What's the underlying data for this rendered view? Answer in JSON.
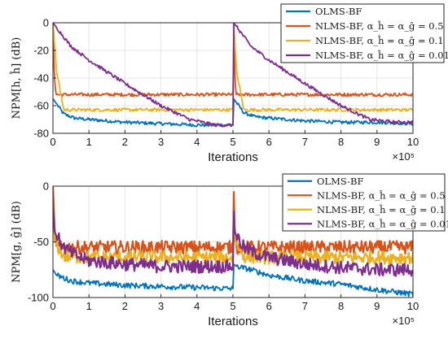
{
  "chart_data": [
    {
      "type": "line",
      "xlabel": "Iterations",
      "ylabel": "NPM[h, ĥ] (dB)",
      "xlim": [
        0,
        10
      ],
      "ylim": [
        -80,
        0
      ],
      "x_ticks": [
        "0",
        "1",
        "2",
        "3",
        "4",
        "5",
        "6",
        "7",
        "8",
        "9",
        "10"
      ],
      "y_ticks": [
        "0",
        "-20",
        "-40",
        "-60",
        "-80"
      ],
      "x_exponent": "×10⁵",
      "grid": true,
      "legend_position": "top-right",
      "series": [
        {
          "name": "OLMS-BF",
          "color": "#0072BD",
          "x": [
            0,
            0.3,
            0.6,
            1,
            2,
            3,
            4,
            5,
            5.02,
            5.3,
            5.6,
            6,
            7,
            8,
            9,
            10
          ],
          "y": [
            -55,
            -66,
            -69,
            -70,
            -72,
            -73,
            -74,
            -74,
            -55,
            -65,
            -68,
            -69,
            -71,
            -72,
            -72,
            -73
          ]
        },
        {
          "name": "NLMS-BF, α_ĥ = α_ĝ = 0.5",
          "color": "#D95319",
          "x": [
            0,
            0.03,
            0.08,
            1,
            5,
            5.02,
            5.05,
            5.08,
            6,
            10
          ],
          "y": [
            0,
            -35,
            -52,
            -52,
            -52,
            0,
            -35,
            -52,
            -52,
            -52
          ]
        },
        {
          "name": "NLMS-BF, α_ĥ = α_ĝ = 0.1",
          "color": "#EDB120",
          "x": [
            0,
            0.1,
            0.3,
            1,
            5,
            5.02,
            5.1,
            5.3,
            6,
            10
          ],
          "y": [
            0,
            -35,
            -63,
            -63,
            -63,
            0,
            -35,
            -63,
            -63,
            -63
          ]
        },
        {
          "name": "NLMS-BF, α_ĥ = α_ĝ = 0.01",
          "color": "#7E2F8E",
          "x": [
            0,
            0.5,
            1,
            2,
            3,
            3.8,
            4.5,
            5,
            5.02,
            5.5,
            6,
            7,
            8,
            8.8,
            9.5,
            10
          ],
          "y": [
            0,
            -17,
            -27,
            -44,
            -60,
            -70,
            -74,
            -74,
            0,
            -17,
            -27,
            -44,
            -60,
            -70,
            -72,
            -72
          ]
        }
      ]
    },
    {
      "type": "line",
      "xlabel": "Iterations",
      "ylabel": "NPM[g, ĝ] (dB)",
      "xlim": [
        0,
        10
      ],
      "ylim": [
        -100,
        0
      ],
      "x_ticks": [
        "0",
        "1",
        "2",
        "3",
        "4",
        "5",
        "6",
        "7",
        "8",
        "9",
        "10"
      ],
      "y_ticks": [
        "0",
        "-50",
        "-100"
      ],
      "x_exponent": "×10⁵",
      "grid": true,
      "legend_position": "top-right",
      "series": [
        {
          "name": "OLMS-BF",
          "color": "#0072BD",
          "x": [
            0,
            0.1,
            0.5,
            1,
            2,
            3,
            4,
            5,
            5.02,
            5.1,
            5.5,
            6,
            7,
            8,
            9,
            10
          ],
          "y": [
            -75,
            -80,
            -85,
            -87,
            -89,
            -90,
            -91,
            -92,
            -70,
            -72,
            -75,
            -80,
            -85,
            -88,
            -93,
            -97
          ]
        },
        {
          "name": "NLMS-BF, α_ĥ = α_ĝ = 0.5",
          "color": "#D95319",
          "x": [
            0,
            0.05,
            0.1,
            1,
            5,
            5.02,
            5.05,
            5.1,
            6,
            10
          ],
          "y": [
            0,
            -40,
            -55,
            -55,
            -55,
            0,
            -40,
            -55,
            -55,
            -55
          ]
        },
        {
          "name": "NLMS-BF, α_ĥ = α_ĝ = 0.1",
          "color": "#EDB120",
          "x": [
            0,
            0.05,
            0.3,
            1,
            5,
            5.02,
            5.05,
            5.3,
            6,
            10
          ],
          "y": [
            -20,
            -50,
            -63,
            -64,
            -64,
            -20,
            -50,
            -63,
            -64,
            -64
          ]
        },
        {
          "name": "NLMS-BF, α_ĥ = α_ĝ = 0.01",
          "color": "#7E2F8E",
          "x": [
            0,
            0.05,
            0.3,
            0.6,
            1,
            2,
            3,
            4,
            5,
            5.02,
            5.05,
            5.3,
            5.6,
            6,
            7,
            8,
            9,
            10
          ],
          "y": [
            -20,
            -42,
            -55,
            -62,
            -67,
            -70,
            -72,
            -72,
            -72,
            -20,
            -42,
            -55,
            -60,
            -64,
            -70,
            -73,
            -75,
            -75
          ]
        }
      ]
    }
  ]
}
